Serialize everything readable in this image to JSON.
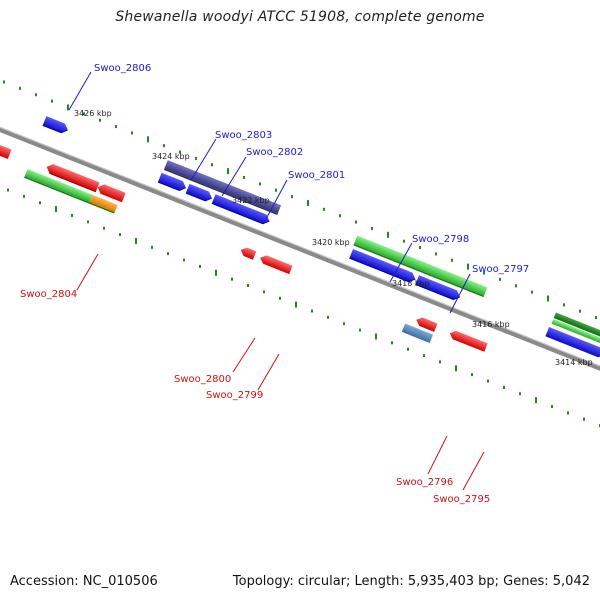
{
  "header": {
    "title": "Shewanella woodyi ATCC 51908, complete genome"
  },
  "footer": {
    "accession": "Accession: NC_010506",
    "summary": "Topology: circular; Length: 5,935,403 bp; Genes: 5,042"
  },
  "kbp_labels": [
    "3426 kbp",
    "3424 kbp",
    "3422 kbp",
    "3420 kbp",
    "3418 kbp",
    "3416 kbp",
    "3414 kbp"
  ],
  "gene_labels": {
    "above": [
      "Swoo_2806",
      "Swoo_2803",
      "Swoo_2802",
      "Swoo_2801",
      "Swoo_2798",
      "Swoo_2797"
    ],
    "below": [
      "Swoo_2804",
      "Swoo_2800",
      "Swoo_2799",
      "Swoo_2796",
      "Swoo_2795"
    ]
  },
  "colors": {
    "forward_gene": "#1010e0",
    "reverse_gene": "#e81010",
    "label_above": "#1a1ad0",
    "label_below": "#d01010",
    "green_feature": "#3cc43c",
    "dark_green_feature": "#1f8a1f",
    "slate_feature": "#4a4a9a",
    "orange_feature": "#f08c00",
    "steel_feature": "#4a82b8",
    "backbone": "#7a7a7a",
    "tick": "#1c8a1c"
  }
}
